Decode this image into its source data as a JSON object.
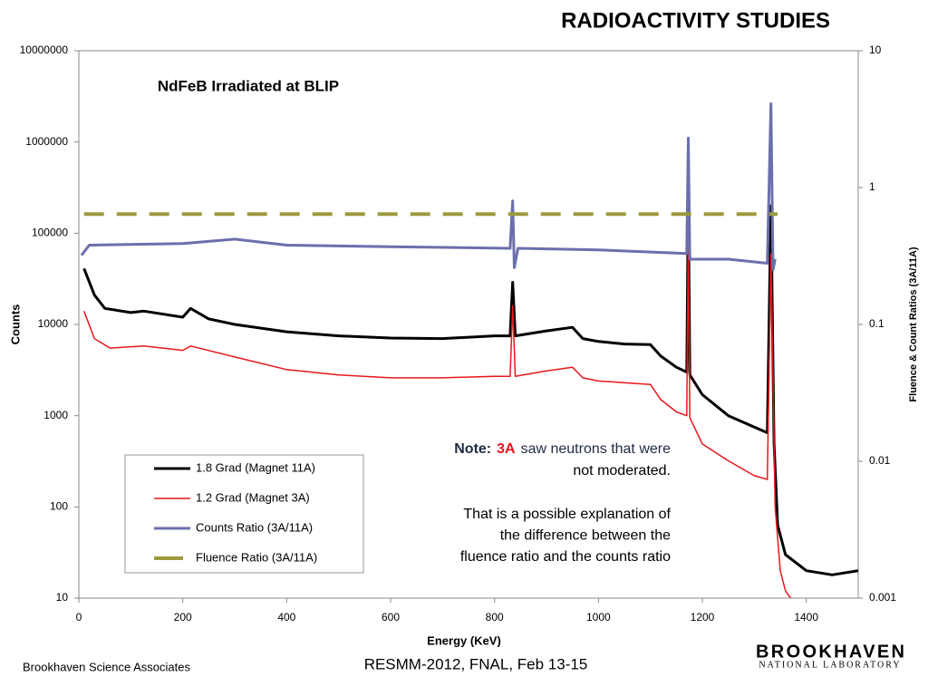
{
  "header": {
    "title": "RADIOACTIVITY STUDIES"
  },
  "chart_data": {
    "type": "line",
    "title": "NdFeB Irradiated at BLIP",
    "x_label": "Energy (KeV)",
    "y_label": "Counts",
    "y2_label": "Fluence & Count Ratios (3A/11A)",
    "xlim": [
      0,
      1500
    ],
    "xticks": [
      0,
      200,
      400,
      600,
      800,
      1000,
      1200,
      1400
    ],
    "ylim": [
      10,
      10000000
    ],
    "yticks": [
      10,
      100,
      1000,
      10000,
      100000,
      1000000,
      10000000
    ],
    "y_log": true,
    "y2lim": [
      0.001,
      10
    ],
    "y2ticks": [
      0.001,
      0.01,
      0.1,
      1,
      10
    ],
    "y2_log": true,
    "grid": false,
    "legend": "lower-left",
    "series": [
      {
        "name": "1.8 Grad (Magnet 11A)",
        "color": "#000000",
        "width": 3,
        "x": [
          10,
          30,
          50,
          100,
          125,
          200,
          215,
          250,
          300,
          400,
          500,
          600,
          700,
          800,
          830,
          835,
          840,
          900,
          950,
          970,
          1000,
          1050,
          1100,
          1120,
          1150,
          1170,
          1173,
          1176,
          1200,
          1250,
          1300,
          1325,
          1332,
          1338,
          1345,
          1360,
          1400,
          1450,
          1500
        ],
        "values": [
          41000,
          21000,
          15000,
          13500,
          14000,
          12000,
          15000,
          11500,
          10000,
          8300,
          7500,
          7100,
          7000,
          7500,
          7500,
          29000,
          7500,
          8500,
          9300,
          7000,
          6500,
          6100,
          6000,
          4500,
          3400,
          3000,
          250000,
          2800,
          1700,
          1000,
          750,
          650,
          200000,
          500,
          63,
          30,
          20,
          18,
          20
        ]
      },
      {
        "name": "1.2 Grad (Magnet 3A)",
        "color": "#e8161c",
        "width": 1.5,
        "x": [
          10,
          30,
          60,
          125,
          200,
          215,
          300,
          400,
          500,
          600,
          700,
          800,
          830,
          835,
          840,
          900,
          950,
          970,
          1000,
          1100,
          1120,
          1150,
          1170,
          1173,
          1176,
          1200,
          1250,
          1300,
          1325,
          1332,
          1340,
          1350,
          1360,
          1370
        ],
        "values": [
          14000,
          7000,
          5500,
          5800,
          5200,
          5800,
          4400,
          3200,
          2800,
          2600,
          2600,
          2700,
          2700,
          16000,
          2700,
          3100,
          3400,
          2600,
          2400,
          2200,
          1500,
          1100,
          1000,
          100000,
          950,
          490,
          320,
          220,
          200,
          60000,
          100,
          20,
          12,
          10
        ]
      },
      {
        "name": "Counts Ratio (3A/11A)",
        "color": "#6b6fab",
        "width": 3,
        "axis": "y2",
        "x": [
          5,
          20,
          200,
          300,
          400,
          600,
          830,
          835,
          838,
          845,
          1000,
          1170,
          1173,
          1176,
          1250,
          1325,
          1332,
          1336,
          1340
        ],
        "values": [
          0.32,
          0.38,
          0.39,
          0.42,
          0.38,
          0.37,
          0.36,
          0.8,
          0.26,
          0.36,
          0.35,
          0.33,
          2.3,
          0.3,
          0.3,
          0.28,
          4.1,
          0.25,
          0.3
        ]
      },
      {
        "name": "Fluence Ratio (3A/11A)",
        "color": "#9c9a3c",
        "width": 4,
        "axis": "y2",
        "dashed": true,
        "x": [
          10,
          1345
        ],
        "values": [
          0.64,
          0.64
        ]
      }
    ]
  },
  "note": {
    "label": "Note:",
    "highlight": "3A",
    "line1": "saw neutrons that were",
    "line2": "not moderated.",
    "lines": [
      "That is a possible explanation of",
      "the difference between the",
      "fluence ratio and the counts ratio"
    ]
  },
  "footer": {
    "event": "RESMM-2012, FNAL, Feb 13-15",
    "org": "Brookhaven Science Associates",
    "logo": "BROOKHAVEN",
    "logo_sub": "NATIONAL LABORATORY"
  }
}
